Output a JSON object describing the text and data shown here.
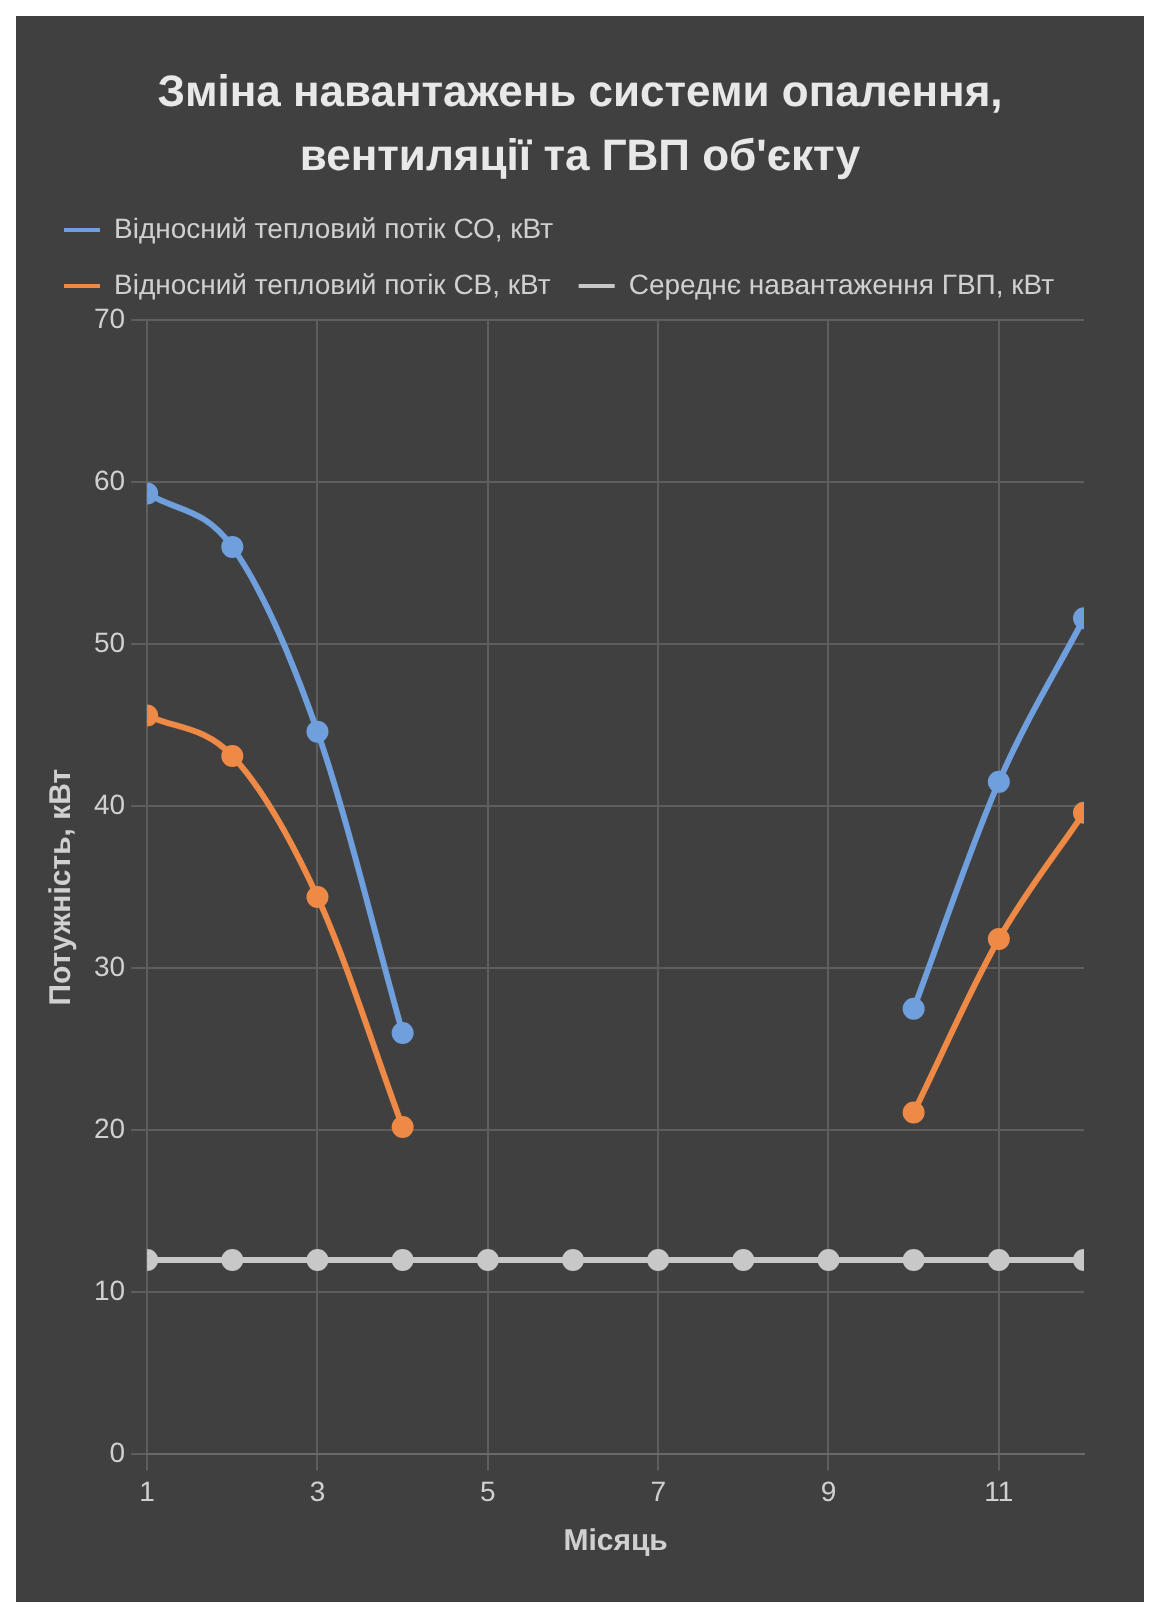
{
  "chart_data": {
    "type": "line",
    "title": "Зміна навантажень системи опалення, вентиляції та ГВП об'єкту",
    "xlabel": "Місяць",
    "ylabel": "Потужність, кВт",
    "x": [
      1,
      2,
      3,
      4,
      5,
      6,
      7,
      8,
      9,
      10,
      11,
      12
    ],
    "series": [
      {
        "name": "Відносний тепловий потік СО, кВт",
        "color": "#6f9fdc",
        "values": [
          59.3,
          56,
          44.6,
          26,
          null,
          null,
          null,
          null,
          null,
          27.5,
          41.5,
          51.6
        ]
      },
      {
        "name": "Відносний тепловий потік СВ, кВт",
        "color": "#ee8a45",
        "values": [
          45.6,
          43.1,
          34.4,
          20.2,
          null,
          null,
          null,
          null,
          null,
          21.1,
          31.8,
          39.6
        ]
      },
      {
        "name": "Середнє навантаження ГВП, кВт",
        "color": "#c8c8c8",
        "values": [
          12,
          12,
          12,
          12,
          12,
          12,
          12,
          12,
          12,
          12,
          12,
          12
        ]
      }
    ],
    "xlim": [
      1,
      12
    ],
    "xticks": [
      1,
      3,
      5,
      7,
      9,
      11
    ],
    "ylim": [
      0,
      70
    ],
    "yticks": [
      0,
      10,
      20,
      30,
      40,
      50,
      60,
      70
    ],
    "grid": true,
    "legend": "top",
    "marker": "circle",
    "line_style": "solid"
  }
}
